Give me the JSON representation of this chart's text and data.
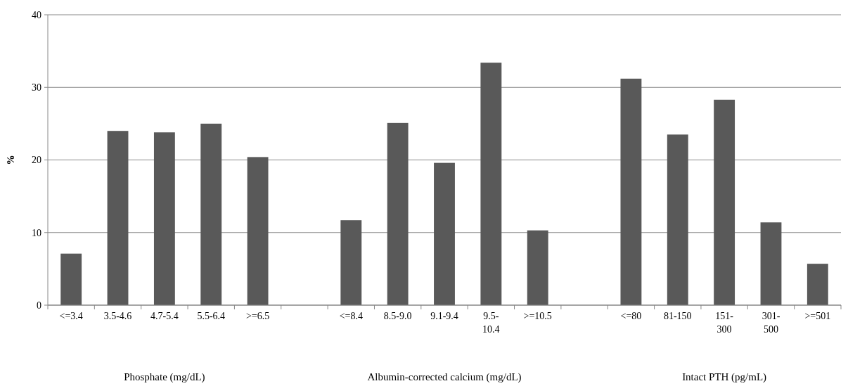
{
  "chart_data": {
    "type": "bar",
    "ylabel": "%",
    "categories": [
      "<=3.4",
      "3.5-4.6",
      "4.7-5.4",
      "5.5-6.4",
      ">=6.5",
      null,
      "<=8.4",
      "8.5-9.0",
      "9.1-9.4",
      "9.5-\n10.4",
      ">=10.5",
      null,
      "<=80",
      "81-150",
      "151-\n300",
      "301-\n500",
      ">=501"
    ],
    "values": [
      7.1,
      24.0,
      23.8,
      25.0,
      20.4,
      null,
      11.7,
      25.1,
      19.6,
      33.4,
      10.3,
      null,
      31.2,
      23.5,
      28.3,
      11.4,
      5.7
    ],
    "color": "#595959",
    "ylim": [
      0,
      40
    ],
    "yticks": [
      0,
      10,
      20,
      30,
      40
    ],
    "grid": "y",
    "annotations": [
      "Phosphate (mg/dL)",
      "Albumin-corrected calcium (mg/dL)",
      "Intact PTH (pg/mL)"
    ]
  }
}
